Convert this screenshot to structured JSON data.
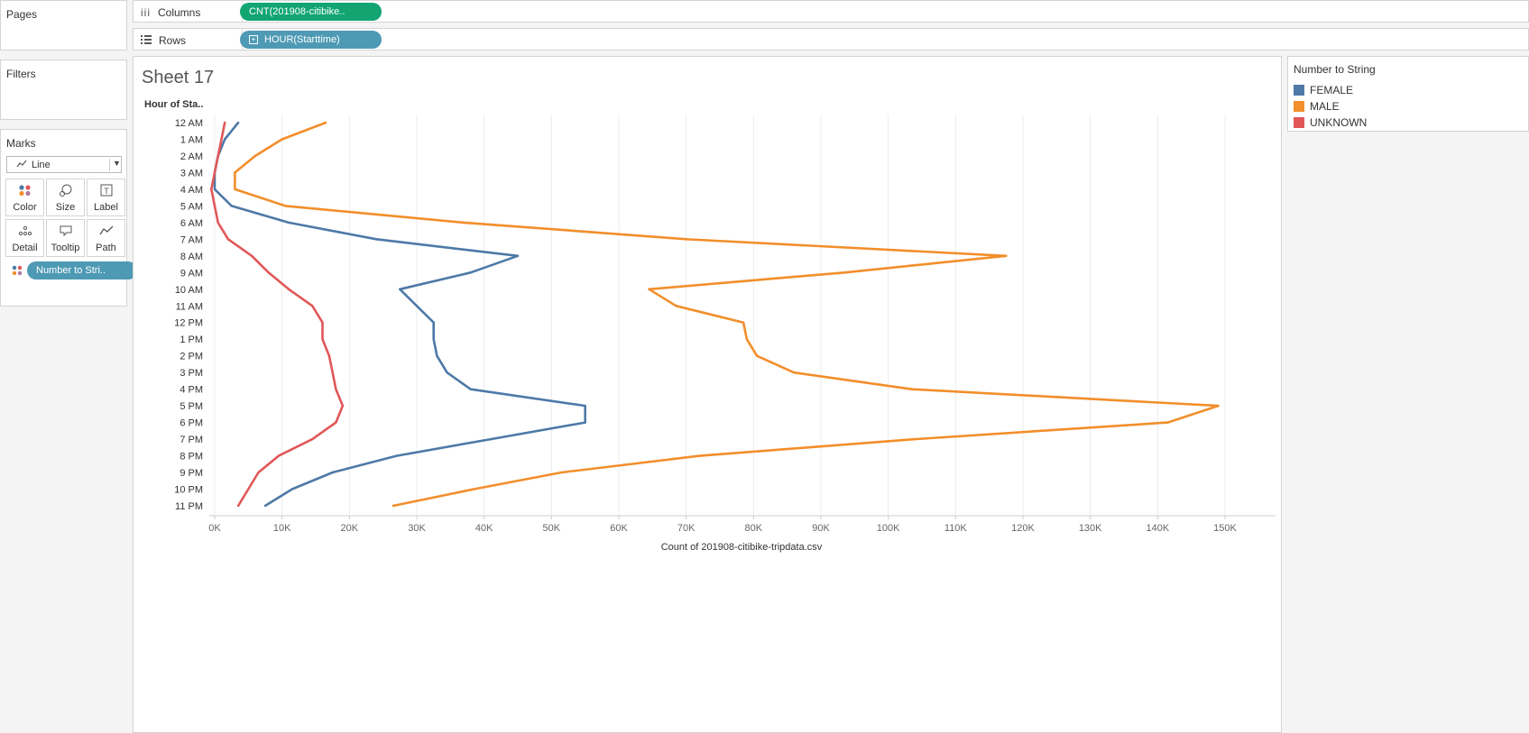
{
  "left": {
    "pages_title": "Pages",
    "filters_title": "Filters",
    "marks_title": "Marks",
    "mark_type": "Line",
    "mark_buttons": [
      {
        "label": "Color",
        "icon": "color-dots-icon"
      },
      {
        "label": "Size",
        "icon": "size-icon"
      },
      {
        "label": "Label",
        "icon": "label-icon"
      },
      {
        "label": "Detail",
        "icon": "detail-icon"
      },
      {
        "label": "Tooltip",
        "icon": "tooltip-icon"
      },
      {
        "label": "Path",
        "icon": "path-icon"
      }
    ],
    "color_pill": "Number to Stri.."
  },
  "shelves": {
    "columns_label": "Columns",
    "columns_pill": "CNT(201908-citibike..",
    "rows_label": "Rows",
    "rows_pill": "HOUR(Starttime)"
  },
  "sheet": {
    "title": "Sheet 17",
    "row_header": "Hour of Sta.."
  },
  "legend": {
    "title": "Number to String",
    "items": [
      {
        "label": "FEMALE",
        "color": "#4e79a7"
      },
      {
        "label": "MALE",
        "color": "#f28e2b"
      },
      {
        "label": "UNKNOWN",
        "color": "#e15759"
      }
    ]
  },
  "chart_data": {
    "type": "line",
    "orientation": "horizontal-lines-over-vertical-category-axis",
    "categories": [
      "12 AM",
      "1 AM",
      "2 AM",
      "3 AM",
      "4 AM",
      "5 AM",
      "6 AM",
      "7 AM",
      "8 AM",
      "9 AM",
      "10 AM",
      "11 AM",
      "12 PM",
      "1 PM",
      "2 PM",
      "3 PM",
      "4 PM",
      "5 PM",
      "6 PM",
      "7 PM",
      "8 PM",
      "9 PM",
      "10 PM",
      "11 PM"
    ],
    "series": [
      {
        "name": "FEMALE",
        "color": "#4e79a7",
        "values": [
          3500,
          1500,
          500,
          0,
          0,
          2500,
          11000,
          24000,
          45000,
          38000,
          27500,
          30000,
          32500,
          32500,
          33000,
          34500,
          38000,
          55000,
          55000,
          41000,
          27000,
          17500,
          11500,
          7500
        ]
      },
      {
        "name": "MALE",
        "color": "#f28e2b",
        "values": [
          16500,
          10000,
          6000,
          3000,
          3000,
          10500,
          37000,
          70000,
          117500,
          93500,
          64500,
          68500,
          78500,
          79000,
          80500,
          86000,
          103500,
          149000,
          141500,
          104000,
          72000,
          51500,
          38500,
          26500
        ]
      },
      {
        "name": "UNKNOWN",
        "color": "#e15759",
        "values": [
          1500,
          1000,
          500,
          0,
          -500,
          0,
          500,
          2000,
          5500,
          8000,
          11000,
          14500,
          16000,
          16000,
          17000,
          17500,
          18000,
          19000,
          18000,
          14500,
          9500,
          6500,
          5000,
          3500
        ]
      }
    ],
    "xlabel": "Count of 201908-citibike-tripdata.csv",
    "xlim": [
      0,
      155000
    ],
    "xticks": [
      0,
      10000,
      20000,
      30000,
      40000,
      50000,
      60000,
      70000,
      80000,
      90000,
      100000,
      110000,
      120000,
      130000,
      140000,
      150000
    ],
    "xtick_labels": [
      "0K",
      "10K",
      "20K",
      "30K",
      "40K",
      "50K",
      "60K",
      "70K",
      "80K",
      "90K",
      "100K",
      "110K",
      "120K",
      "130K",
      "140K",
      "150K"
    ],
    "grid": "vertical"
  }
}
